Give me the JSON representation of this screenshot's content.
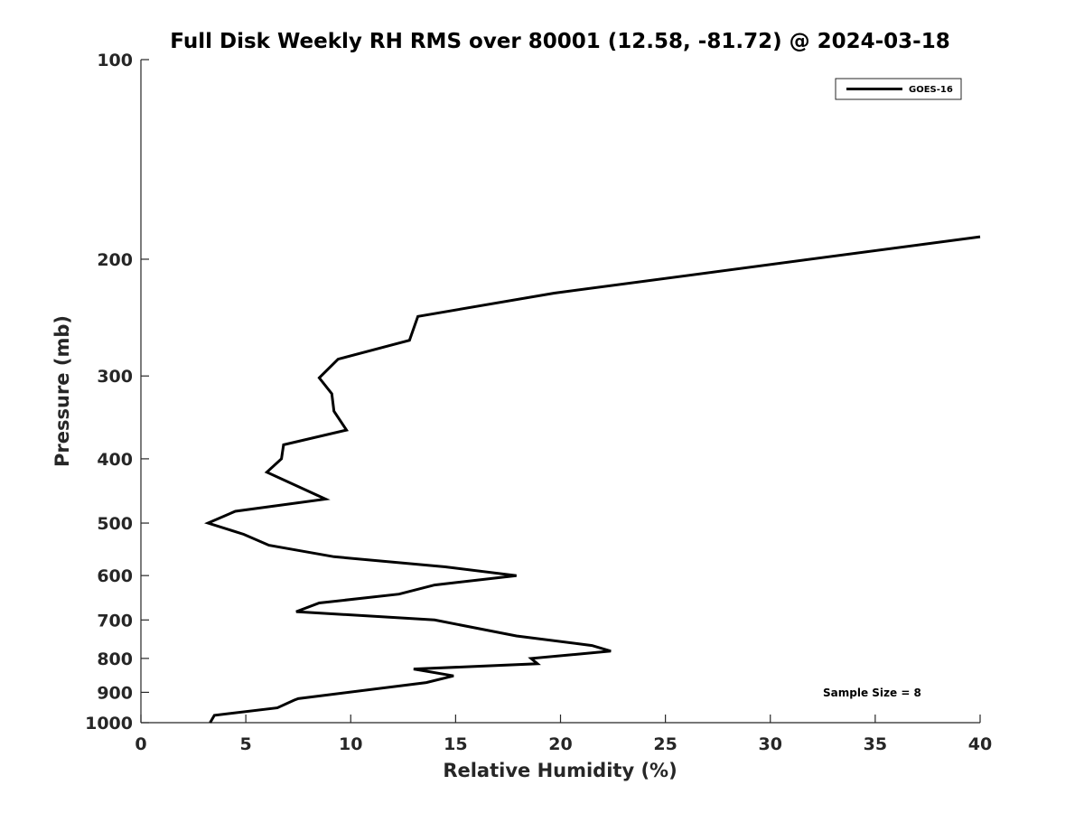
{
  "chart_data": {
    "type": "line",
    "title": "Full Disk Weekly RH RMS over 80001 (12.58, -81.72) @ 2024-03-18",
    "xlabel": "Relative Humidity (%)",
    "ylabel": "Pressure (mb)",
    "xlim": [
      0,
      40
    ],
    "ylim": [
      100,
      1000
    ],
    "y_scale": "log",
    "y_reversed": true,
    "x_ticks": [
      "0",
      "5",
      "10",
      "15",
      "20",
      "25",
      "30",
      "35",
      "40"
    ],
    "y_ticks": [
      "100",
      "200",
      "300",
      "400",
      "500",
      "600",
      "700",
      "800",
      "900",
      "1000"
    ],
    "grid": false,
    "legend_position": "top-right",
    "series": [
      {
        "name": "GOES-16",
        "color": "#000000",
        "points": [
          [
            40.0,
            185
          ],
          [
            19.7,
            225
          ],
          [
            13.2,
            244
          ],
          [
            12.8,
            265
          ],
          [
            9.4,
            283
          ],
          [
            8.5,
            302
          ],
          [
            9.1,
            319
          ],
          [
            9.2,
            339
          ],
          [
            9.8,
            362
          ],
          [
            6.8,
            381
          ],
          [
            6.7,
            400
          ],
          [
            6.0,
            419
          ],
          [
            8.8,
            460
          ],
          [
            4.5,
            480
          ],
          [
            3.2,
            500
          ],
          [
            4.9,
            520
          ],
          [
            6.1,
            540
          ],
          [
            9.2,
            562
          ],
          [
            14.5,
            582
          ],
          [
            17.9,
            600
          ],
          [
            14.0,
            620
          ],
          [
            12.3,
            640
          ],
          [
            8.5,
            660
          ],
          [
            7.4,
            680
          ],
          [
            14.0,
            700
          ],
          [
            17.9,
            740
          ],
          [
            21.5,
            765
          ],
          [
            22.4,
            780
          ],
          [
            18.6,
            800
          ],
          [
            18.9,
            815
          ],
          [
            13.0,
            830
          ],
          [
            14.9,
            850
          ],
          [
            13.6,
            870
          ],
          [
            7.5,
            920
          ],
          [
            7.3,
            925
          ],
          [
            6.5,
            950
          ],
          [
            3.5,
            975
          ],
          [
            3.3,
            1000
          ]
        ]
      }
    ],
    "annotation": "Sample Size = 8"
  }
}
